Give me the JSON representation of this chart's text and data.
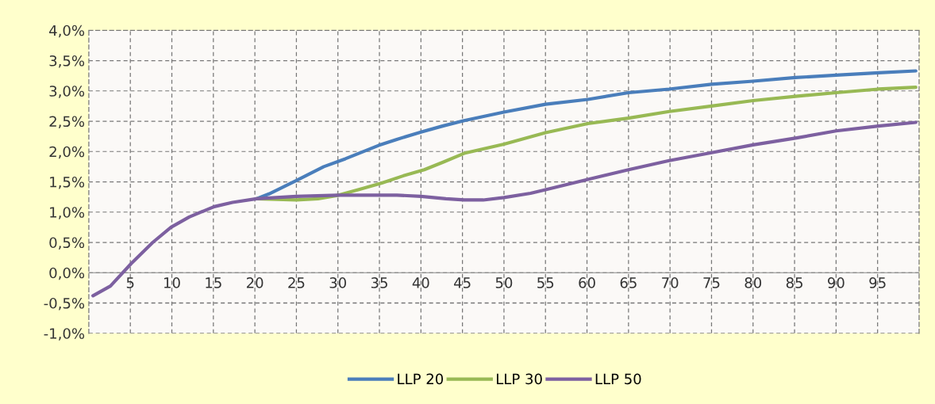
{
  "chart_data": {
    "type": "line",
    "xlim": [
      0,
      100
    ],
    "xticks": [
      5,
      10,
      15,
      20,
      25,
      30,
      35,
      40,
      45,
      50,
      55,
      60,
      65,
      70,
      75,
      80,
      85,
      90,
      95
    ],
    "ylim": [
      -1.0,
      4.0
    ],
    "yticks": [
      {
        "value": -1.0,
        "label": "-1,0%"
      },
      {
        "value": -0.5,
        "label": "-0,5%"
      },
      {
        "value": 0.0,
        "label": "0,0%"
      },
      {
        "value": 0.5,
        "label": "0,5%"
      },
      {
        "value": 1.0,
        "label": "1,0%"
      },
      {
        "value": 1.5,
        "label": "1,5%"
      },
      {
        "value": 2.0,
        "label": "2,0%"
      },
      {
        "value": 2.5,
        "label": "2,5%"
      },
      {
        "value": 3.0,
        "label": "3,0%"
      },
      {
        "value": 3.5,
        "label": "3,5%"
      },
      {
        "value": 4.0,
        "label": "4,0%"
      }
    ],
    "grid": true,
    "legend": "bottom",
    "line_style": "solid",
    "marker": "none",
    "series": [
      {
        "name": "LLP 20",
        "color": "#4a7ebb",
        "x": [
          20.2,
          21.7,
          25,
          28.3,
          30.9,
          34.9,
          37.1,
          40,
          42.6,
          45.2,
          50,
          55,
          60.1,
          65,
          69.9,
          75,
          80,
          85.1,
          90,
          95.1,
          99.6
        ],
        "values": [
          1.22,
          1.3,
          1.52,
          1.75,
          1.88,
          2.1,
          2.2,
          2.32,
          2.42,
          2.51,
          2.65,
          2.78,
          2.86,
          2.97,
          3.03,
          3.11,
          3.16,
          3.22,
          3.26,
          3.3,
          3.33
        ]
      },
      {
        "name": "LLP 30",
        "color": "#98b954",
        "x": [
          20.2,
          25,
          27.6,
          30.1,
          32.7,
          35.3,
          37.9,
          40.4,
          42.6,
          45.2,
          50,
          55,
          60.1,
          65,
          69.9,
          75,
          80,
          85.1,
          90,
          95.1,
          99.6
        ],
        "values": [
          1.22,
          1.2,
          1.22,
          1.28,
          1.38,
          1.48,
          1.6,
          1.7,
          1.82,
          1.97,
          2.12,
          2.31,
          2.46,
          2.55,
          2.66,
          2.75,
          2.84,
          2.91,
          2.97,
          3.03,
          3.06
        ]
      },
      {
        "name": "LLP 50",
        "color": "#7d60a0",
        "x": [
          0.5,
          2.6,
          5.1,
          7.7,
          9.9,
          12.1,
          15.1,
          17.3,
          20.2,
          25,
          30.1,
          37.1,
          40,
          43,
          45.2,
          47.5,
          50,
          53.2,
          55,
          60.1,
          65,
          69.9,
          75,
          80,
          85.1,
          90,
          95.1,
          99.6
        ],
        "values": [
          -0.38,
          -0.22,
          0.15,
          0.5,
          0.75,
          0.92,
          1.09,
          1.16,
          1.22,
          1.26,
          1.28,
          1.28,
          1.26,
          1.22,
          1.2,
          1.2,
          1.24,
          1.31,
          1.37,
          1.54,
          1.7,
          1.85,
          1.98,
          2.11,
          2.22,
          2.34,
          2.42,
          2.48
        ]
      }
    ]
  }
}
